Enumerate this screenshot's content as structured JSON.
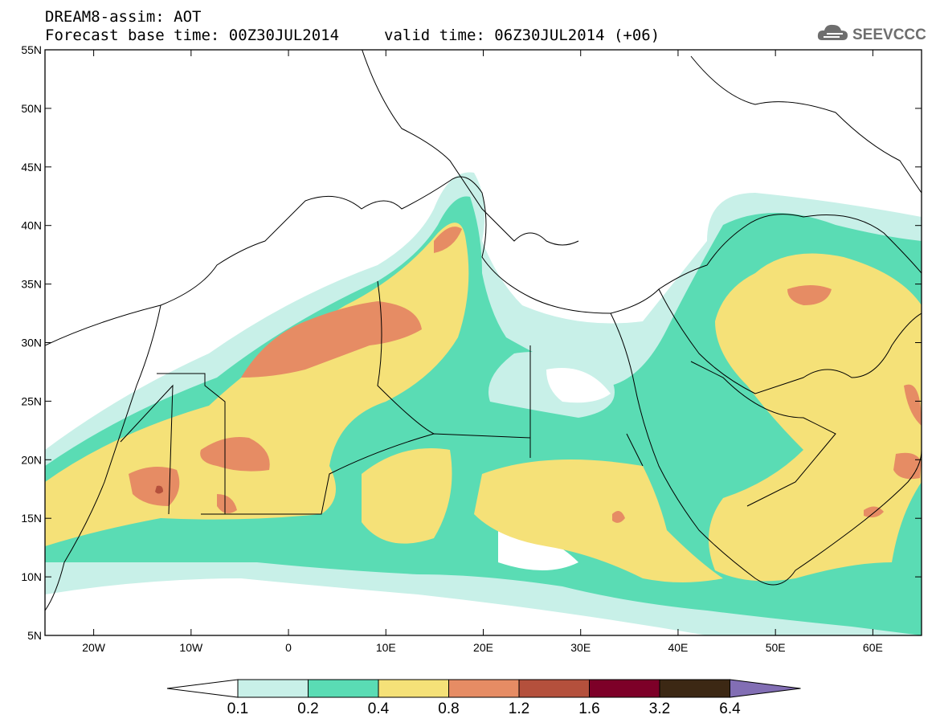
{
  "header": {
    "title": "DREAM8-assim: AOT",
    "base_time": "Forecast base time: 00Z30JUL2014",
    "valid_time": "valid time: 06Z30JUL2014 (+06)"
  },
  "logo": {
    "text": "SEEVCCC",
    "icon": "cloud-icon"
  },
  "axes": {
    "lat_labels": [
      "55N",
      "50N",
      "45N",
      "40N",
      "35N",
      "30N",
      "25N",
      "20N",
      "15N",
      "10N",
      "5N"
    ],
    "lat_values": [
      55,
      50,
      45,
      40,
      35,
      30,
      25,
      20,
      15,
      10,
      5
    ],
    "lon_labels": [
      "20W",
      "10W",
      "0",
      "10E",
      "20E",
      "30E",
      "40E",
      "50E",
      "60E"
    ],
    "lon_values": [
      -20,
      -10,
      0,
      10,
      20,
      30,
      40,
      50,
      60
    ],
    "lon_range": [
      -25,
      65
    ],
    "lat_range": [
      5,
      55
    ]
  },
  "colorbar": {
    "labels": [
      "0.1",
      "0.2",
      "0.4",
      "0.8",
      "1.2",
      "1.6",
      "3.2",
      "6.4"
    ],
    "colors": [
      "#ffffff",
      "#c8f0e8",
      "#5adcb4",
      "#f5e178",
      "#e68c64",
      "#b4503c",
      "#7d0028",
      "#3c2814",
      "#826eb4"
    ]
  }
}
